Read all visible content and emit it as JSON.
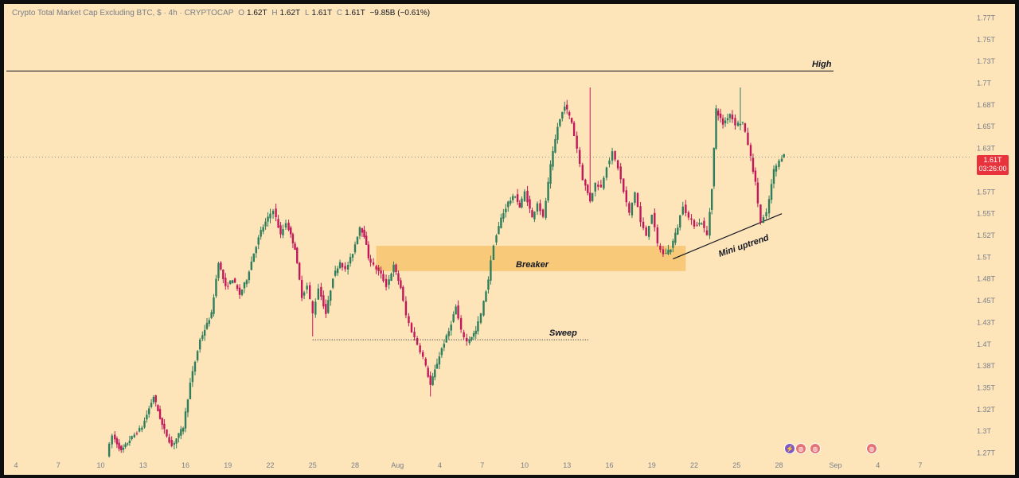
{
  "header": {
    "symbol": "Crypto Total Market Cap Excluding BTC, $ · 4h · CRYPTOCAP",
    "o_label": "O",
    "o_val": "1.62T",
    "h_label": "H",
    "h_val": "1.62T",
    "l_label": "L",
    "l_val": "1.61T",
    "c_label": "C",
    "c_val": "1.61T",
    "change": "−9.85B (−0.61%)"
  },
  "price_tag": {
    "price": "1.61T",
    "countdown": "03:26:00"
  },
  "annotations": {
    "high": "High",
    "breaker": "Breaker",
    "sweep": "Sweep",
    "mini_uptrend": "Mini uptrend"
  },
  "colors": {
    "background": "#fde4b9",
    "up": "#2e7d5b",
    "down": "#c2185b",
    "zone": "#f7c46c",
    "price_tag": "#e8323c"
  },
  "chart_data": {
    "type": "candlestick",
    "title": "Crypto Total Market Cap Excluding BTC, $ · 4h · CRYPTOCAP",
    "y_ticks": [
      "1.77T",
      "1.75T",
      "1.73T",
      "1.7T",
      "1.68T",
      "1.65T",
      "1.63T",
      "1.6T",
      "1.57T",
      "1.55T",
      "1.52T",
      "1.5T",
      "1.48T",
      "1.45T",
      "1.43T",
      "1.4T",
      "1.38T",
      "1.35T",
      "1.32T",
      "1.3T",
      "1.27T"
    ],
    "x_ticks": [
      "4",
      "7",
      "10",
      "13",
      "16",
      "19",
      "22",
      "25",
      "28",
      "Aug",
      "4",
      "7",
      "10",
      "13",
      "16",
      "19",
      "22",
      "25",
      "28",
      "Sep",
      "4",
      "7"
    ],
    "x_positions_day_index": [
      0,
      3,
      6,
      9,
      12,
      15,
      18,
      21,
      24,
      27,
      30,
      33,
      36,
      39,
      42,
      45,
      48,
      51,
      54,
      58,
      61,
      64
    ],
    "ylim": [
      1.265,
      1.775
    ],
    "grid": false,
    "last_price": 1.61,
    "levels": {
      "high": 1.709,
      "sweep": 1.4
    },
    "breaker_zone": {
      "from_day": 25.5,
      "to_day": 47.4,
      "low": 1.479,
      "high": 1.508
    },
    "trendline": [
      {
        "day": 46.5,
        "value": 1.493
      },
      {
        "day": 54.2,
        "value": 1.545
      }
    ],
    "anchors": [
      [
        6.6,
        1.268
      ],
      [
        7.0,
        1.29
      ],
      [
        7.6,
        1.272
      ],
      [
        8.2,
        1.285
      ],
      [
        9.1,
        1.3
      ],
      [
        9.9,
        1.335
      ],
      [
        10.5,
        1.302
      ],
      [
        11.2,
        1.278
      ],
      [
        12.0,
        1.3
      ],
      [
        12.5,
        1.35
      ],
      [
        13.2,
        1.4
      ],
      [
        14.0,
        1.43
      ],
      [
        14.5,
        1.49
      ],
      [
        15.0,
        1.46
      ],
      [
        15.5,
        1.47
      ],
      [
        16.0,
        1.452
      ],
      [
        16.5,
        1.47
      ],
      [
        17.0,
        1.5
      ],
      [
        17.5,
        1.525
      ],
      [
        18.0,
        1.54
      ],
      [
        18.4,
        1.55
      ],
      [
        18.9,
        1.52
      ],
      [
        19.3,
        1.535
      ],
      [
        19.9,
        1.505
      ],
      [
        20.4,
        1.45
      ],
      [
        20.8,
        1.462
      ],
      [
        21.2,
        1.43
      ],
      [
        21.6,
        1.46
      ],
      [
        22.1,
        1.43
      ],
      [
        22.6,
        1.472
      ],
      [
        23.1,
        1.49
      ],
      [
        23.5,
        1.48
      ],
      [
        24.0,
        1.5
      ],
      [
        24.5,
        1.53
      ],
      [
        24.8,
        1.52
      ],
      [
        25.1,
        1.495
      ],
      [
        25.5,
        1.485
      ],
      [
        26.0,
        1.475
      ],
      [
        26.4,
        1.462
      ],
      [
        26.9,
        1.485
      ],
      [
        27.4,
        1.46
      ],
      [
        27.8,
        1.428
      ],
      [
        28.2,
        1.41
      ],
      [
        28.6,
        1.395
      ],
      [
        29.0,
        1.38
      ],
      [
        29.5,
        1.348
      ],
      [
        29.8,
        1.365
      ],
      [
        30.3,
        1.39
      ],
      [
        30.8,
        1.41
      ],
      [
        31.3,
        1.438
      ],
      [
        31.7,
        1.41
      ],
      [
        32.1,
        1.398
      ],
      [
        32.7,
        1.41
      ],
      [
        33.1,
        1.43
      ],
      [
        33.6,
        1.47
      ],
      [
        34.0,
        1.51
      ],
      [
        34.5,
        1.54
      ],
      [
        35.0,
        1.558
      ],
      [
        35.5,
        1.566
      ],
      [
        35.8,
        1.552
      ],
      [
        36.2,
        1.57
      ],
      [
        36.7,
        1.54
      ],
      [
        37.1,
        1.558
      ],
      [
        37.5,
        1.54
      ],
      [
        38.0,
        1.6
      ],
      [
        38.5,
        1.645
      ],
      [
        39.0,
        1.67
      ],
      [
        39.5,
        1.65
      ],
      [
        39.9,
        1.62
      ],
      [
        40.3,
        1.585
      ],
      [
        40.8,
        1.56
      ],
      [
        41.2,
        1.58
      ],
      [
        41.6,
        1.575
      ],
      [
        42.0,
        1.6
      ],
      [
        42.4,
        1.615
      ],
      [
        42.8,
        1.598
      ],
      [
        43.2,
        1.57
      ],
      [
        43.6,
        1.545
      ],
      [
        44.0,
        1.57
      ],
      [
        44.4,
        1.535
      ],
      [
        44.8,
        1.52
      ],
      [
        45.2,
        1.545
      ],
      [
        45.6,
        1.51
      ],
      [
        46.0,
        1.498
      ],
      [
        46.5,
        1.505
      ],
      [
        47.0,
        1.53
      ],
      [
        47.4,
        1.555
      ],
      [
        47.8,
        1.54
      ],
      [
        48.2,
        1.532
      ],
      [
        48.7,
        1.535
      ],
      [
        49.1,
        1.52
      ],
      [
        49.4,
        1.575
      ],
      [
        49.7,
        1.665
      ],
      [
        50.2,
        1.648
      ],
      [
        50.7,
        1.66
      ],
      [
        51.1,
        1.648
      ],
      [
        51.6,
        1.65
      ],
      [
        52.0,
        1.625
      ],
      [
        52.5,
        1.58
      ],
      [
        52.9,
        1.535
      ],
      [
        53.3,
        1.545
      ],
      [
        53.8,
        1.595
      ],
      [
        54.2,
        1.605
      ],
      [
        54.5,
        1.615
      ]
    ],
    "wick_spikes": [
      [
        51.3,
        1.69
      ],
      [
        40.6,
        1.69
      ],
      [
        29.4,
        1.335
      ],
      [
        21.0,
        1.404
      ]
    ]
  }
}
